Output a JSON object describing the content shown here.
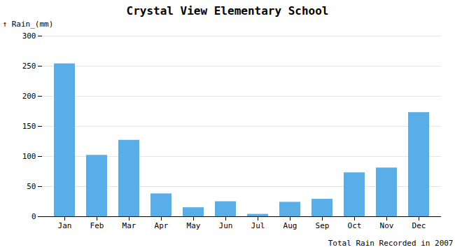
{
  "chart_data": {
    "type": "bar",
    "title": "Crystal View Elementary School",
    "xlabel": "Total Rain Recorded in 2007",
    "ylabel": "Rain_(mm)",
    "categories": [
      "Jan",
      "Feb",
      "Mar",
      "Apr",
      "May",
      "Jun",
      "Jul",
      "Aug",
      "Sep",
      "Oct",
      "Nov",
      "Dec"
    ],
    "values": [
      254,
      102,
      127,
      38,
      15,
      25,
      4,
      24,
      29,
      73,
      81,
      173
    ],
    "color": "#5aaee8",
    "ylim": [
      0,
      300
    ],
    "yticks": [
      0,
      50,
      100,
      150,
      200,
      250,
      300
    ],
    "grid": true
  }
}
